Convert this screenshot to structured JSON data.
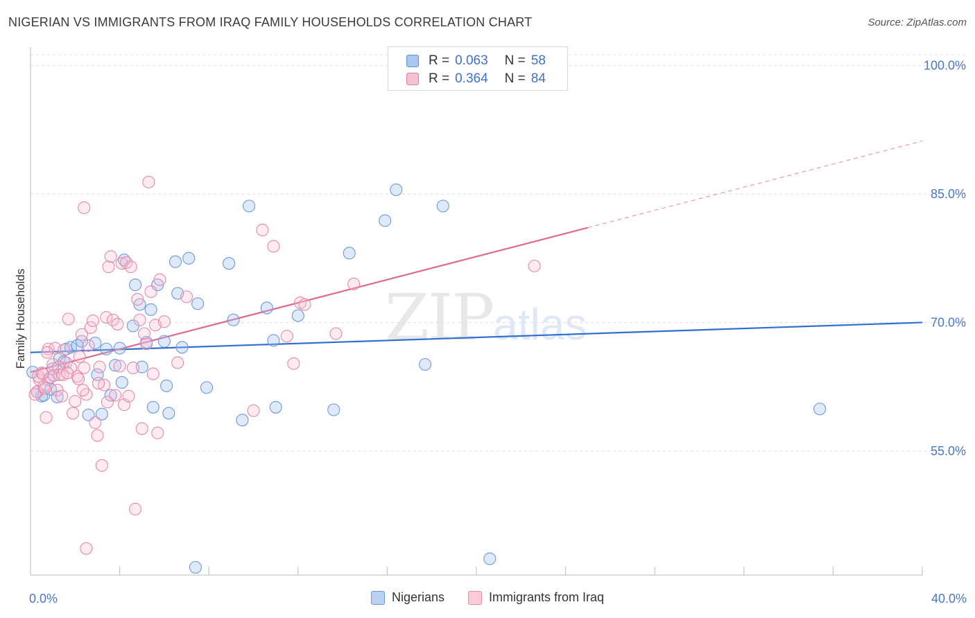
{
  "title": "NIGERIAN VS IMMIGRANTS FROM IRAQ FAMILY HOUSEHOLDS CORRELATION CHART",
  "source": "Source: ZipAtlas.com",
  "watermark": {
    "zip": "ZIP",
    "atlas": "atlas"
  },
  "legend_top": {
    "rows": [
      {
        "r_label": "R =",
        "r_value": "0.063",
        "n_label": "N =",
        "n_value": "58",
        "color": "#a9c7f0",
        "border": "#5e8fd6"
      },
      {
        "r_label": "R =",
        "r_value": "0.364",
        "n_label": "N =",
        "n_value": "84",
        "color": "#f7c1d1",
        "border": "#e07fa0"
      }
    ]
  },
  "legend_bottom": [
    {
      "label": "Nigerians",
      "color": "#b9d2f3",
      "border": "#6d98d8"
    },
    {
      "label": "Immigrants from Iraq",
      "color": "#f9ccd8",
      "border": "#e48aa8"
    }
  ],
  "chart_data": {
    "type": "scatter",
    "title": "NIGERIAN VS IMMIGRANTS FROM IRAQ FAMILY HOUSEHOLDS CORRELATION CHART",
    "xlabel": "",
    "ylabel": "Family Households",
    "xlim": [
      0,
      40
    ],
    "ylim": [
      40.5,
      102
    ],
    "x_tick_labels": [
      "0.0%",
      "40.0%"
    ],
    "y_ticks": [
      55,
      70,
      85,
      100
    ],
    "y_tick_labels": [
      "55.0%",
      "70.0%",
      "85.0%",
      "100.0%"
    ],
    "grid": true,
    "series": [
      {
        "name": "Nigerians",
        "color": "#6d98d8",
        "fill": "rgba(160,195,240,0.35)",
        "trend": {
          "x0": 0,
          "y0": 66.5,
          "x1": 40,
          "y1": 70.0,
          "dashed_from": null
        },
        "points": [
          [
            0.5,
            61.4
          ],
          [
            0.6,
            61.5
          ],
          [
            0.8,
            63.3
          ],
          [
            1.0,
            64.6
          ],
          [
            1.3,
            65.8
          ],
          [
            1.5,
            65.4
          ],
          [
            1.6,
            66.9
          ],
          [
            1.8,
            67.1
          ],
          [
            2.1,
            67.3
          ],
          [
            2.3,
            67.8
          ],
          [
            2.6,
            59.2
          ],
          [
            2.9,
            67.6
          ],
          [
            3.0,
            63.9
          ],
          [
            3.2,
            59.3
          ],
          [
            3.4,
            66.9
          ],
          [
            3.6,
            61.5
          ],
          [
            3.8,
            65.0
          ],
          [
            4.0,
            67.0
          ],
          [
            4.1,
            63.0
          ],
          [
            4.2,
            77.3
          ],
          [
            4.6,
            69.6
          ],
          [
            4.7,
            74.4
          ],
          [
            4.9,
            72.1
          ],
          [
            5.0,
            64.8
          ],
          [
            5.2,
            67.7
          ],
          [
            5.4,
            71.5
          ],
          [
            5.5,
            60.1
          ],
          [
            5.7,
            74.4
          ],
          [
            6.0,
            67.8
          ],
          [
            6.1,
            62.6
          ],
          [
            6.2,
            59.4
          ],
          [
            6.5,
            77.1
          ],
          [
            6.6,
            73.4
          ],
          [
            6.8,
            67.1
          ],
          [
            7.1,
            77.5
          ],
          [
            7.4,
            41.4
          ],
          [
            7.5,
            72.2
          ],
          [
            7.9,
            62.4
          ],
          [
            8.9,
            76.9
          ],
          [
            9.1,
            70.3
          ],
          [
            9.5,
            58.6
          ],
          [
            9.8,
            83.6
          ],
          [
            10.6,
            71.7
          ],
          [
            10.9,
            67.9
          ],
          [
            11.0,
            60.1
          ],
          [
            12.0,
            70.8
          ],
          [
            13.6,
            59.8
          ],
          [
            14.3,
            78.1
          ],
          [
            15.9,
            81.9
          ],
          [
            16.4,
            85.5
          ],
          [
            17.7,
            65.1
          ],
          [
            18.5,
            83.6
          ],
          [
            20.6,
            42.4
          ],
          [
            35.4,
            59.9
          ],
          [
            0.3,
            61.9
          ],
          [
            0.9,
            62.2
          ],
          [
            1.2,
            61.3
          ],
          [
            0.1,
            64.2
          ]
        ]
      },
      {
        "name": "Immigrants from Iraq",
        "color": "#e48aa8",
        "fill": "rgba(247,190,208,0.30)",
        "trend": {
          "x0": 0,
          "y0": 64.2,
          "x1": 40,
          "y1": 91.2,
          "dashed_from": 25
        },
        "points": [
          [
            0.3,
            61.9
          ],
          [
            0.4,
            63.3
          ],
          [
            0.5,
            64.1
          ],
          [
            0.6,
            62.5
          ],
          [
            0.7,
            58.9
          ],
          [
            0.8,
            66.9
          ],
          [
            0.9,
            63.6
          ],
          [
            1.0,
            65.1
          ],
          [
            1.1,
            67.0
          ],
          [
            1.2,
            62.1
          ],
          [
            1.3,
            63.9
          ],
          [
            1.4,
            61.4
          ],
          [
            1.5,
            66.8
          ],
          [
            1.6,
            65.3
          ],
          [
            1.7,
            70.4
          ],
          [
            1.8,
            64.7
          ],
          [
            1.9,
            59.4
          ],
          [
            2.0,
            60.8
          ],
          [
            2.1,
            63.7
          ],
          [
            2.2,
            66.0
          ],
          [
            2.3,
            68.6
          ],
          [
            2.4,
            64.7
          ],
          [
            2.5,
            61.6
          ],
          [
            2.6,
            67.3
          ],
          [
            2.7,
            69.4
          ],
          [
            2.8,
            70.2
          ],
          [
            2.9,
            58.3
          ],
          [
            3.0,
            56.8
          ],
          [
            3.1,
            64.8
          ],
          [
            3.2,
            53.3
          ],
          [
            3.3,
            62.7
          ],
          [
            3.4,
            70.6
          ],
          [
            3.5,
            76.5
          ],
          [
            3.6,
            77.7
          ],
          [
            3.7,
            70.3
          ],
          [
            3.8,
            61.5
          ],
          [
            3.9,
            69.8
          ],
          [
            4.0,
            64.9
          ],
          [
            4.1,
            76.9
          ],
          [
            4.2,
            60.4
          ],
          [
            4.3,
            77.0
          ],
          [
            4.4,
            61.4
          ],
          [
            4.5,
            76.5
          ],
          [
            4.6,
            64.7
          ],
          [
            4.7,
            48.2
          ],
          [
            4.8,
            72.7
          ],
          [
            4.9,
            70.3
          ],
          [
            5.0,
            57.6
          ],
          [
            5.1,
            68.7
          ],
          [
            5.2,
            67.5
          ],
          [
            5.3,
            86.4
          ],
          [
            5.4,
            73.6
          ],
          [
            5.5,
            64.0
          ],
          [
            5.6,
            69.7
          ],
          [
            5.7,
            57.1
          ],
          [
            5.8,
            75.0
          ],
          [
            6.0,
            70.1
          ],
          [
            2.4,
            83.4
          ],
          [
            2.5,
            43.6
          ],
          [
            6.6,
            65.3
          ],
          [
            7.0,
            73.0
          ],
          [
            10.0,
            59.7
          ],
          [
            10.4,
            80.8
          ],
          [
            10.9,
            78.9
          ],
          [
            11.5,
            68.4
          ],
          [
            11.8,
            65.2
          ],
          [
            12.1,
            72.3
          ],
          [
            12.3,
            72.1
          ],
          [
            13.7,
            68.7
          ],
          [
            14.5,
            74.5
          ],
          [
            22.6,
            76.6
          ],
          [
            0.2,
            61.6
          ],
          [
            0.35,
            63.7
          ],
          [
            0.55,
            64.0
          ],
          [
            0.65,
            62.3
          ],
          [
            0.75,
            66.5
          ],
          [
            1.05,
            63.8
          ],
          [
            1.25,
            64.8
          ],
          [
            1.45,
            63.9
          ],
          [
            1.65,
            64.1
          ],
          [
            2.15,
            63.4
          ],
          [
            2.35,
            62.1
          ],
          [
            3.05,
            62.9
          ],
          [
            3.45,
            60.7
          ]
        ]
      }
    ]
  }
}
